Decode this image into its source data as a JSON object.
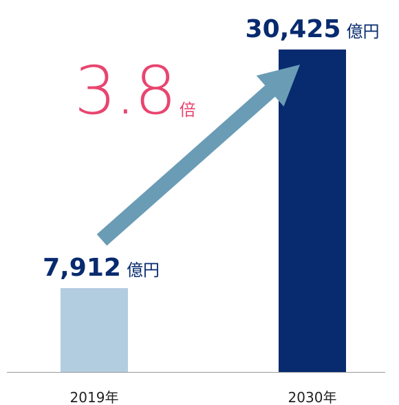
{
  "chart_data": {
    "type": "bar",
    "categories": [
      "2019年",
      "2030年"
    ],
    "series": [
      {
        "values": [
          7912,
          30425
        ],
        "value_labels": [
          "7,912",
          "30,425"
        ],
        "colors": [
          "#b3cde0",
          "#082a6e"
        ]
      }
    ],
    "unit": "億円",
    "annotation": {
      "text": "3.8",
      "unit": "倍",
      "color": "#e8456f"
    },
    "arrow_color": "#6a9cb5"
  }
}
